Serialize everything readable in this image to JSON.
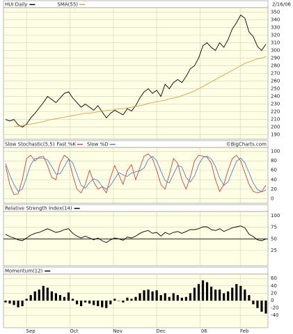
{
  "chart_data": [
    {
      "type": "line",
      "title": "HUI Daily",
      "date": "2/16/06",
      "ylim": [
        187,
        353
      ],
      "yticks": [
        190,
        200,
        210,
        220,
        230,
        240,
        250,
        260,
        270,
        280,
        290,
        300,
        310,
        320,
        330,
        340,
        350
      ],
      "grid": true,
      "series": [
        {
          "name": "HUI Daily",
          "color": "#000000",
          "values": [
            210,
            208,
            210,
            203,
            200,
            204,
            212,
            218,
            225,
            232,
            240,
            236,
            232,
            238,
            244,
            246,
            238,
            232,
            226,
            230,
            226,
            222,
            228,
            220,
            212,
            218,
            222,
            219,
            216,
            224,
            221,
            228,
            238,
            246,
            250,
            244,
            248,
            240,
            256,
            250,
            258,
            262,
            258,
            266,
            276,
            280,
            290,
            306,
            310,
            304,
            300,
            310,
            304,
            314,
            328,
            336,
            346,
            342,
            324,
            318,
            305,
            300,
            308
          ]
        },
        {
          "name": "SMA(55)",
          "color": "#d8a040",
          "values": [
            null,
            null,
            201,
            201,
            202,
            203,
            204,
            205,
            206,
            207,
            209,
            210,
            211,
            212,
            213,
            214,
            215,
            216,
            217,
            218,
            218,
            219,
            220,
            221,
            222,
            222,
            223,
            224,
            224,
            225,
            226,
            227,
            228,
            229,
            231,
            232,
            233,
            234,
            235,
            237,
            238,
            239,
            241,
            243,
            245,
            247,
            250,
            253,
            256,
            259,
            262,
            265,
            268,
            271,
            274,
            277,
            280,
            283,
            285,
            287,
            289,
            290,
            292
          ]
        }
      ]
    },
    {
      "type": "line",
      "title": "Slow Stochastic(5,5)",
      "credit": "©BigCharts.com",
      "ylim": [
        -4,
        104
      ],
      "yticks": [
        0,
        20,
        40,
        60,
        80,
        100
      ],
      "grid": true,
      "series": [
        {
          "name": "Fast %K",
          "color": "#d04040",
          "values": [
            70,
            30,
            8,
            10,
            40,
            85,
            92,
            80,
            88,
            90,
            70,
            45,
            40,
            75,
            92,
            85,
            50,
            20,
            12,
            30,
            60,
            35,
            20,
            25,
            12,
            45,
            70,
            50,
            30,
            60,
            72,
            40,
            65,
            90,
            95,
            85,
            60,
            30,
            20,
            50,
            85,
            75,
            40,
            20,
            45,
            80,
            92,
            90,
            88,
            75,
            40,
            15,
            30,
            60,
            85,
            92,
            80,
            55,
            30,
            15,
            12,
            15,
            28
          ]
        },
        {
          "name": "Slow %D",
          "color": "#4a7fd0",
          "values": [
            75,
            50,
            30,
            15,
            20,
            45,
            72,
            85,
            86,
            86,
            82,
            68,
            52,
            53,
            68,
            84,
            76,
            52,
            28,
            22,
            34,
            42,
            38,
            26,
            20,
            28,
            42,
            55,
            50,
            47,
            54,
            57,
            59,
            65,
            83,
            90,
            80,
            58,
            38,
            33,
            52,
            70,
            67,
            45,
            35,
            48,
            72,
            87,
            90,
            84,
            68,
            43,
            28,
            35,
            58,
            79,
            86,
            76,
            55,
            33,
            19,
            14,
            18
          ]
        }
      ]
    },
    {
      "type": "line",
      "title": "Relative Strength Index(14)",
      "ylim": [
        -2,
        106
      ],
      "yticks": [
        25,
        50,
        75,
        100
      ],
      "grid": true,
      "reference_line": 50,
      "series": [
        {
          "color": "#000000",
          "values": [
            60,
            55,
            52,
            48,
            46,
            52,
            58,
            62,
            64,
            68,
            72,
            68,
            64,
            66,
            70,
            72,
            62,
            56,
            52,
            56,
            52,
            48,
            52,
            46,
            42,
            48,
            52,
            50,
            47,
            54,
            52,
            56,
            62,
            66,
            68,
            62,
            64,
            56,
            64,
            60,
            64,
            66,
            62,
            66,
            70,
            70,
            72,
            76,
            76,
            70,
            68,
            72,
            66,
            70,
            74,
            76,
            78,
            74,
            60,
            55,
            48,
            46,
            50
          ]
        }
      ]
    },
    {
      "type": "bar",
      "title": "Momentum(12)",
      "ylim": [
        -66,
        68
      ],
      "yticks": [
        -40,
        -20,
        0,
        20,
        40,
        60
      ],
      "grid": true,
      "xlim": [
        0,
        62
      ],
      "xticks": [
        {
          "value": 5,
          "label": "Sep"
        },
        {
          "value": 15.3,
          "label": "Oct"
        },
        {
          "value": 25.7,
          "label": "Nov"
        },
        {
          "value": 36,
          "label": "Dec"
        },
        {
          "value": 46.3,
          "label": "06"
        },
        {
          "value": 55.9,
          "label": "Feb"
        }
      ],
      "series": [
        {
          "color": "#000000",
          "values": [
            -5,
            -8,
            -12,
            -18,
            -15,
            5,
            15,
            25,
            30,
            40,
            35,
            25,
            20,
            15,
            10,
            22,
            5,
            -10,
            -15,
            -5,
            -8,
            -12,
            -15,
            -18,
            -20,
            -10,
            5,
            0,
            -5,
            8,
            5,
            10,
            20,
            28,
            30,
            25,
            28,
            15,
            20,
            10,
            20,
            15,
            8,
            10,
            20,
            35,
            45,
            55,
            50,
            38,
            30,
            30,
            20,
            25,
            35,
            45,
            40,
            30,
            15,
            -10,
            -20,
            -30,
            -35
          ]
        }
      ]
    }
  ]
}
